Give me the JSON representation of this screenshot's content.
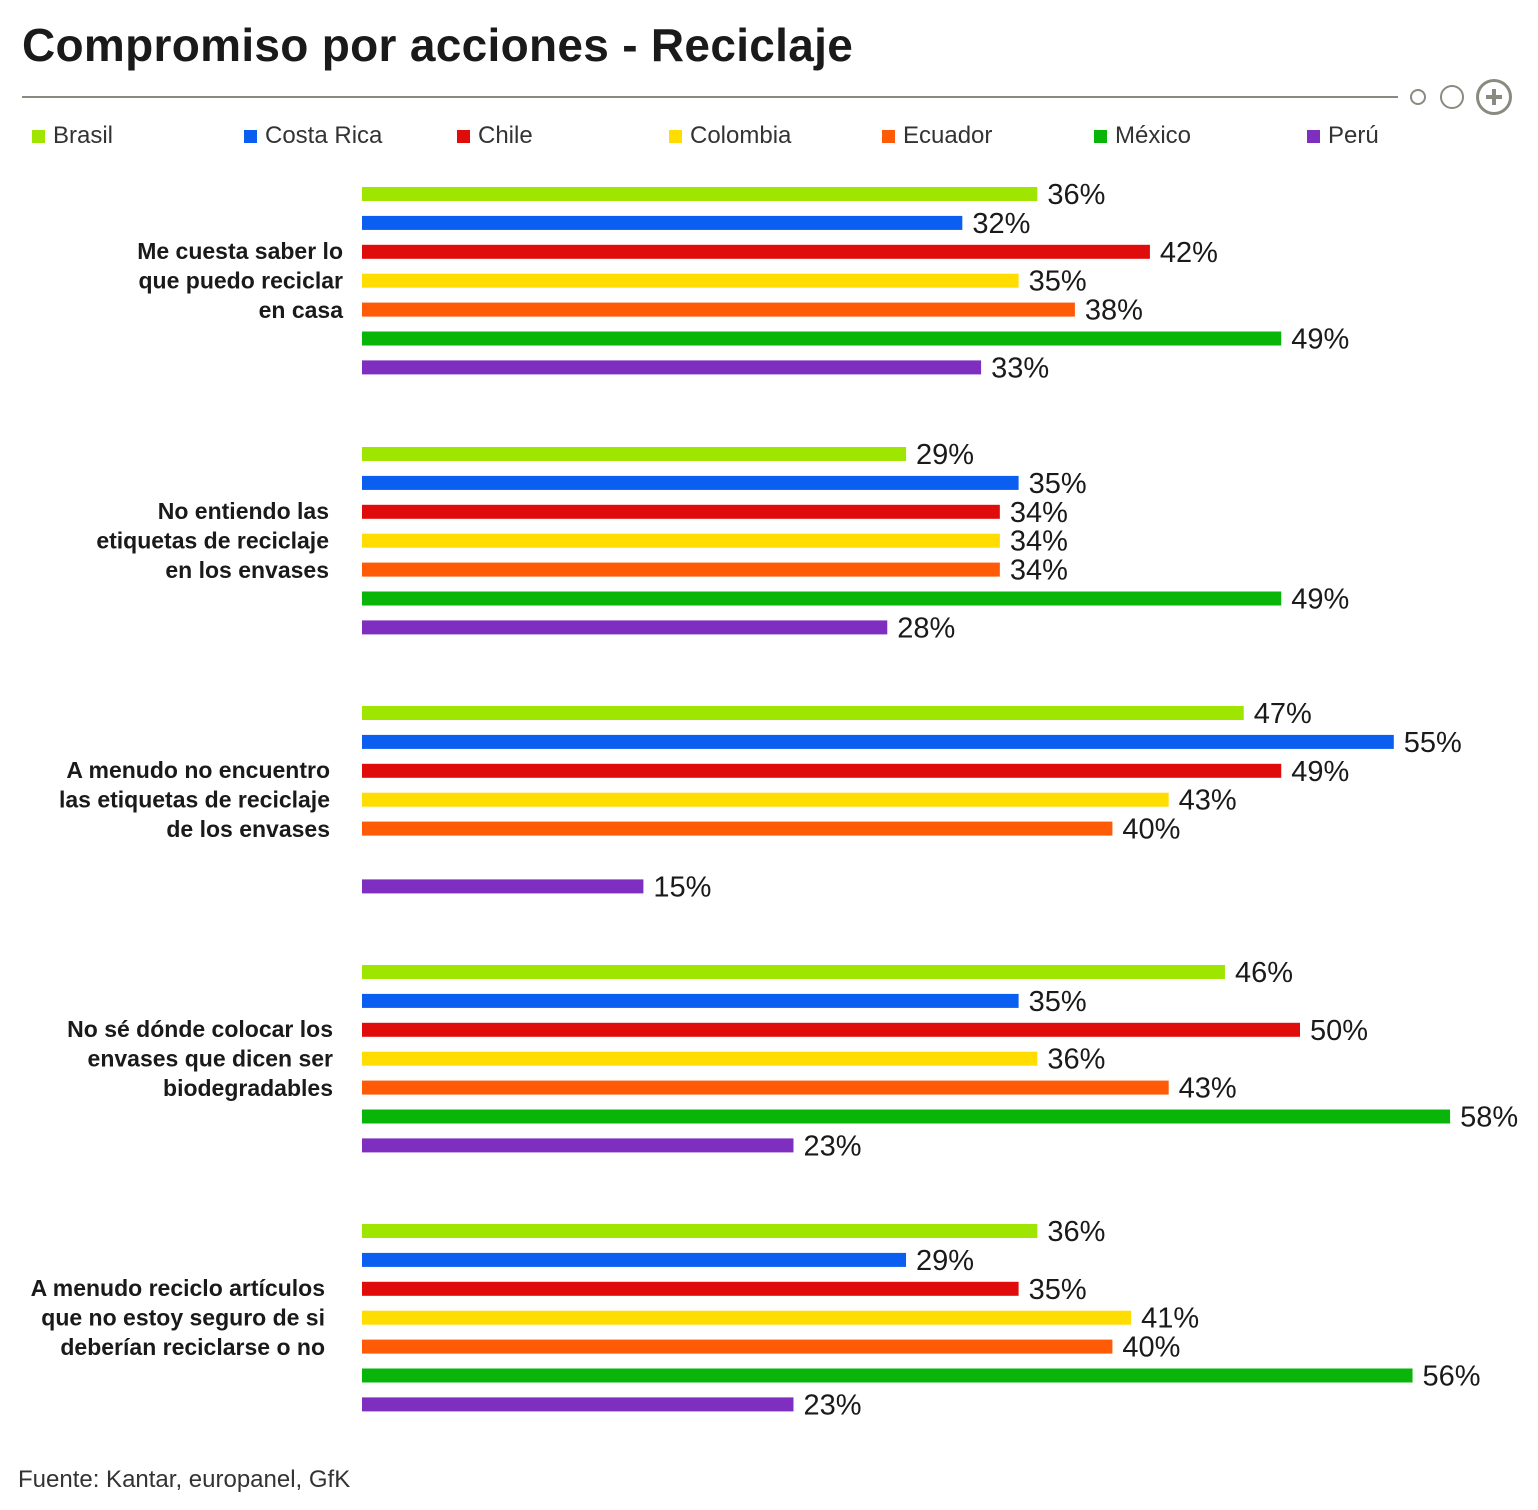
{
  "title": "Compromiso por acciones - Reciclaje",
  "source": "Fuente: Kantar, europanel, GfK",
  "chart_data": {
    "type": "bar",
    "orientation": "horizontal",
    "title": "Compromiso por acciones - Reciclaje",
    "xlabel": "",
    "ylabel": "",
    "xlim": [
      0,
      58
    ],
    "grid": false,
    "legend": "top",
    "value_suffix": "%",
    "categories": [
      [
        "Me cuesta saber lo",
        "que puedo reciclar",
        "en casa"
      ],
      [
        "No entiendo las",
        "etiquetas de reciclaje",
        "en los envases"
      ],
      [
        "A menudo no encuentro",
        "las etiquetas de reciclaje",
        "de los envases"
      ],
      [
        "No sé dónde colocar los",
        "envases que dicen ser",
        "biodegradables"
      ],
      [
        "A menudo reciclo artículos",
        "que no estoy seguro de si",
        "deberían reciclarse o no"
      ]
    ],
    "series": [
      {
        "name": "Brasil",
        "color": "#9ee600",
        "values": [
          36,
          29,
          47,
          46,
          36
        ]
      },
      {
        "name": "Costa Rica",
        "color": "#0a5ef0",
        "values": [
          32,
          35,
          55,
          35,
          29
        ]
      },
      {
        "name": "Chile",
        "color": "#e00b0b",
        "values": [
          42,
          34,
          49,
          50,
          35
        ]
      },
      {
        "name": "Colombia",
        "color": "#ffdd00",
        "values": [
          35,
          34,
          43,
          36,
          41
        ]
      },
      {
        "name": "Ecuador",
        "color": "#ff5a05",
        "values": [
          38,
          34,
          40,
          43,
          40
        ]
      },
      {
        "name": "México",
        "color": "#0ab50a",
        "values": [
          49,
          49,
          null,
          58,
          56
        ]
      },
      {
        "name": "Perú",
        "color": "#7f2fbf",
        "values": [
          33,
          28,
          15,
          23,
          23
        ]
      }
    ]
  }
}
